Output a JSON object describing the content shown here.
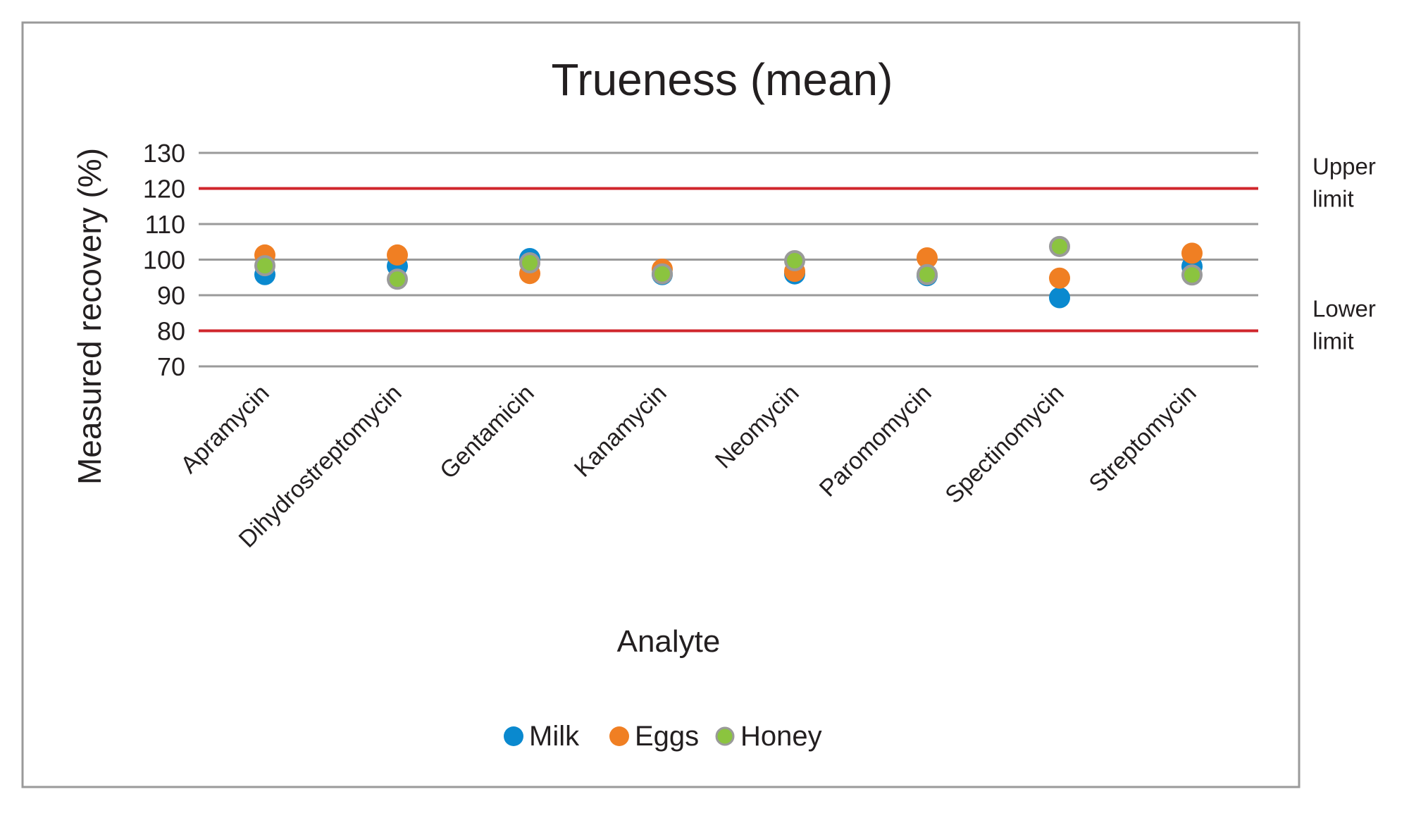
{
  "chart_data": {
    "type": "scatter",
    "title": "Trueness (mean)",
    "xlabel": "Analyte",
    "ylabel": "Measured recovery (%)",
    "ylim": [
      70,
      130
    ],
    "yticks": [
      70,
      80,
      90,
      100,
      110,
      120,
      130
    ],
    "grid": true,
    "legend_position": "bottom",
    "categories": [
      "Apramycin",
      "Dihydrostreptomycin",
      "Gentamicin",
      "Kanamycin",
      "Neomycin",
      "Paromomycin",
      "Spectinomycin",
      "Streptomycin"
    ],
    "series": [
      {
        "name": "Milk",
        "color": "#0a89cf",
        "values": [
          95.8,
          98.2,
          100.3,
          95.8,
          96.0,
          95.5,
          89.3,
          98.1
        ]
      },
      {
        "name": "Eggs",
        "color": "#f07f23",
        "values": [
          101.3,
          101.3,
          96.1,
          97.3,
          96.7,
          100.5,
          94.8,
          101.8
        ]
      },
      {
        "name": "Honey",
        "color": "#8bc43f",
        "stroke": "#9a9a9a",
        "values": [
          98.3,
          94.5,
          99.1,
          96.0,
          99.7,
          95.8,
          103.7,
          95.7
        ]
      }
    ],
    "reference_lines": [
      {
        "value": 120,
        "label": [
          "Upper",
          "limit"
        ],
        "color": "#d0262c"
      },
      {
        "value": 80,
        "label": [
          "Lower",
          "limit"
        ],
        "color": "#d0262c"
      }
    ]
  }
}
